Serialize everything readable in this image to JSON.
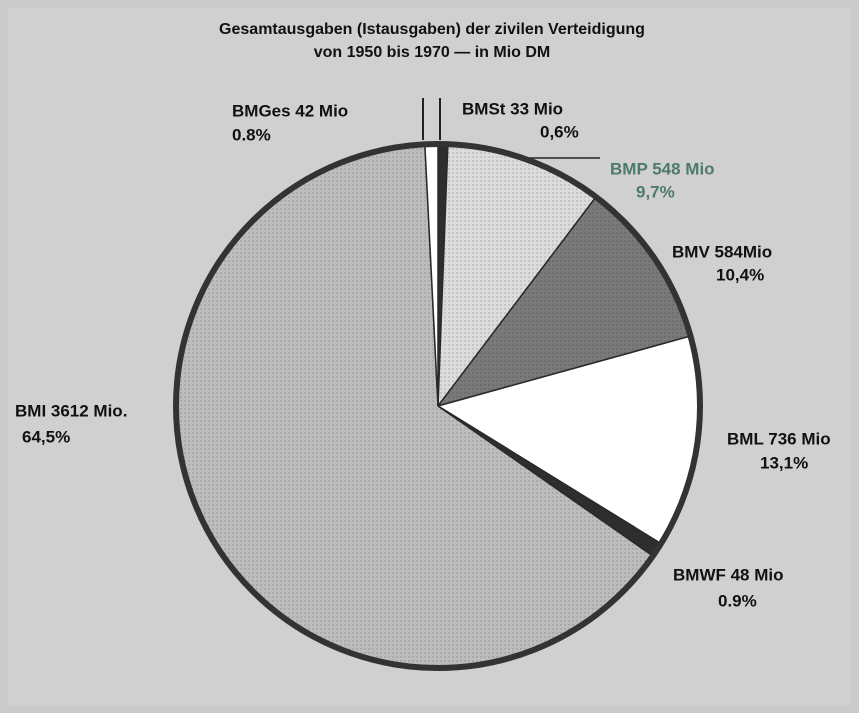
{
  "chart_data": {
    "type": "pie",
    "title": [
      "Gesamtausgaben (Istausgaben) der zivilen Verteidigung",
      "von 1950 bis 1970 — in Mio DM"
    ],
    "categories": [
      "BMSt 33 Mio",
      "BMP 548 Mio",
      "BMV 584Mio",
      "BML 736 Mio",
      "BMWF 48 Mio",
      "BMI 3612 Mio.",
      "BMGes 42 Mio"
    ],
    "values": [
      0.6,
      9.7,
      10.4,
      13.1,
      0.9,
      64.5,
      0.8
    ],
    "value_labels": [
      "0,6%",
      "9,7%",
      "10,4%",
      "13,1%",
      "0.9%",
      "64,5%",
      "0.8%"
    ],
    "colors": [
      "#2e2e2e",
      "#dcdcdc",
      "#7a7a7a",
      "#ffffff",
      "#2e2e2e",
      "#bdbdbd",
      "#ffffff"
    ],
    "label_colors": [
      "#111111",
      "#4d7a6a",
      "#111111",
      "#111111",
      "#111111",
      "#111111",
      "#111111"
    ]
  }
}
